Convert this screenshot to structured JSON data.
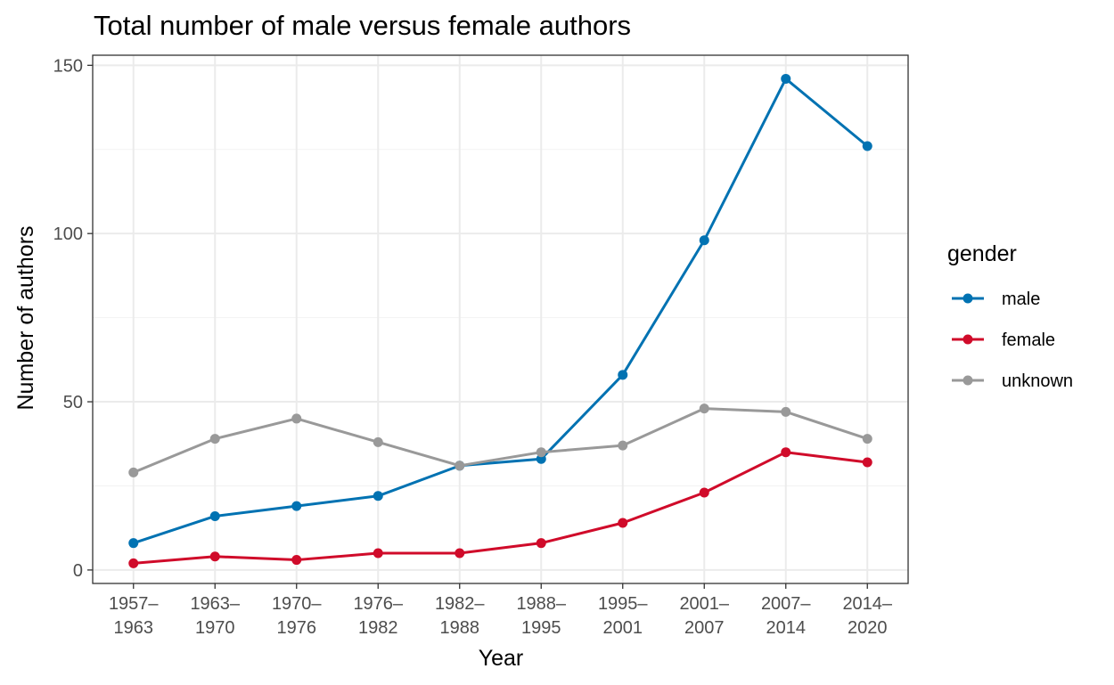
{
  "chart_data": {
    "type": "line",
    "title": "Total number of male versus female authors",
    "xlabel": "Year",
    "ylabel": "Number of authors",
    "categories": [
      [
        "1957–",
        "1963"
      ],
      [
        "1963–",
        "1970"
      ],
      [
        "1970–",
        "1976"
      ],
      [
        "1976–",
        "1982"
      ],
      [
        "1982–",
        "1988"
      ],
      [
        "1988–",
        "1995"
      ],
      [
        "1995–",
        "2001"
      ],
      [
        "2001–",
        "2007"
      ],
      [
        "2007–",
        "2014"
      ],
      [
        "2014–",
        "2020"
      ]
    ],
    "ylim": [
      -4,
      153
    ],
    "yticks": [
      0,
      50,
      100,
      150
    ],
    "grid": true,
    "legend": {
      "title": "gender",
      "position": "right"
    },
    "series": [
      {
        "name": "male",
        "color": "#0072b2",
        "values": [
          8,
          16,
          19,
          22,
          31,
          33,
          58,
          98,
          146,
          126
        ]
      },
      {
        "name": "female",
        "color": "#d00b2a",
        "values": [
          2,
          4,
          3,
          5,
          5,
          8,
          14,
          23,
          35,
          32
        ]
      },
      {
        "name": "unknown",
        "color": "#999999",
        "values": [
          29,
          39,
          45,
          38,
          31,
          35,
          37,
          48,
          47,
          39
        ]
      }
    ]
  }
}
